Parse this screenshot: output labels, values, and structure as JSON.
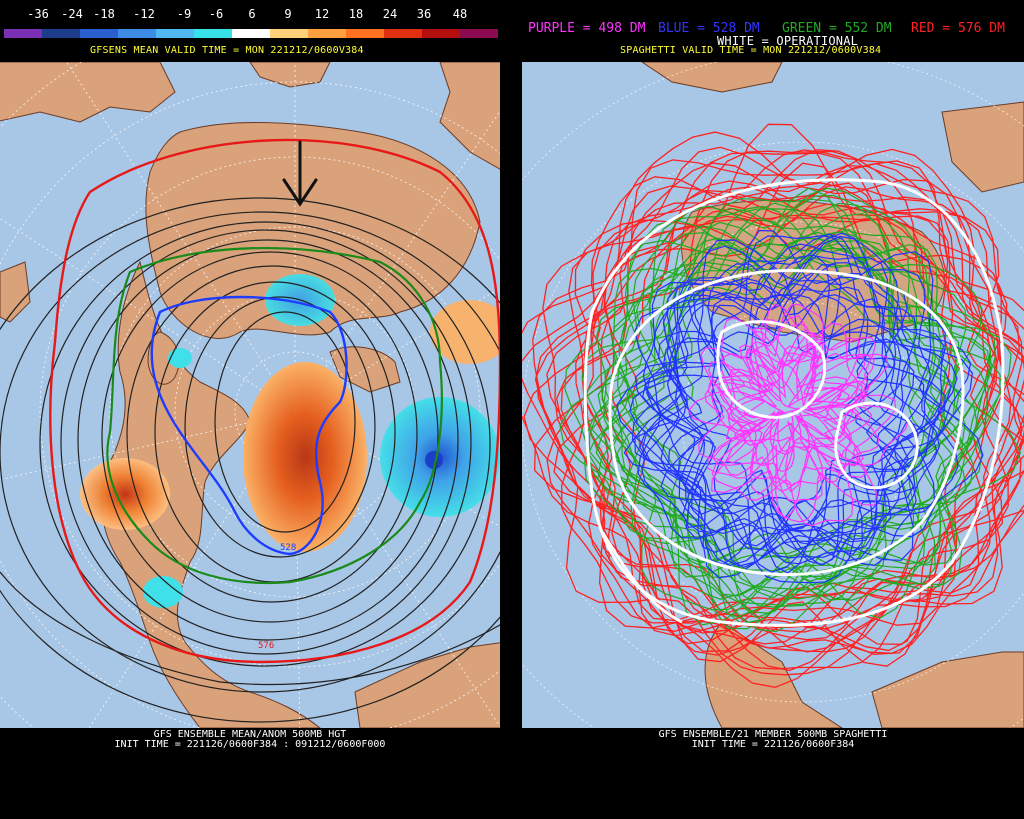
{
  "left": {
    "colorbar": {
      "labels": [
        "-36",
        "-24",
        "-18",
        "-12",
        "-9",
        "-6",
        "6",
        "9",
        "12",
        "18",
        "24",
        "36",
        "48"
      ],
      "colors": [
        "#7a2fb4",
        "#1e3c8c",
        "#2a5fd0",
        "#3c8ce6",
        "#4fb8f0",
        "#38e0e8",
        "#ffffff",
        "#ffd27a",
        "#ffa040",
        "#ff7020",
        "#e03010",
        "#b40e0e",
        "#8c0a50"
      ]
    },
    "title": "GFSENS MEAN VALID TIME = MON 221212/0600V384",
    "footer_line1": "GFS ENSEMBLE MEAN/ANOM 500MB HGT",
    "footer_line2": "INIT TIME = 221126/0600F384 : 091212/0600F000",
    "contour_label_blue": "528",
    "contour_label_red": "576",
    "arrow_icon": "down-arrow-icon"
  },
  "right": {
    "legend": [
      {
        "text": "PURPLE = 498 DM",
        "color": "#ff33ff"
      },
      {
        "text": "BLUE = 528 DM",
        "color": "#3333ff"
      },
      {
        "text": "GREEN = 552 DM",
        "color": "#22aa22"
      },
      {
        "text": "RED = 576 DM",
        "color": "#ff2222"
      }
    ],
    "operational": "WHITE = OPERATIONAL",
    "title": "SPAGHETTI VALID TIME = MON 221212/0600V384",
    "footer_line1": "GFS ENSEMBLE/21 MEMBER 500MB SPAGHETTI",
    "footer_line2": "INIT TIME = 221126/0600F384"
  },
  "colors": {
    "ocean": "#a8c6e6",
    "land": "#d9a27a",
    "background": "#000000"
  }
}
